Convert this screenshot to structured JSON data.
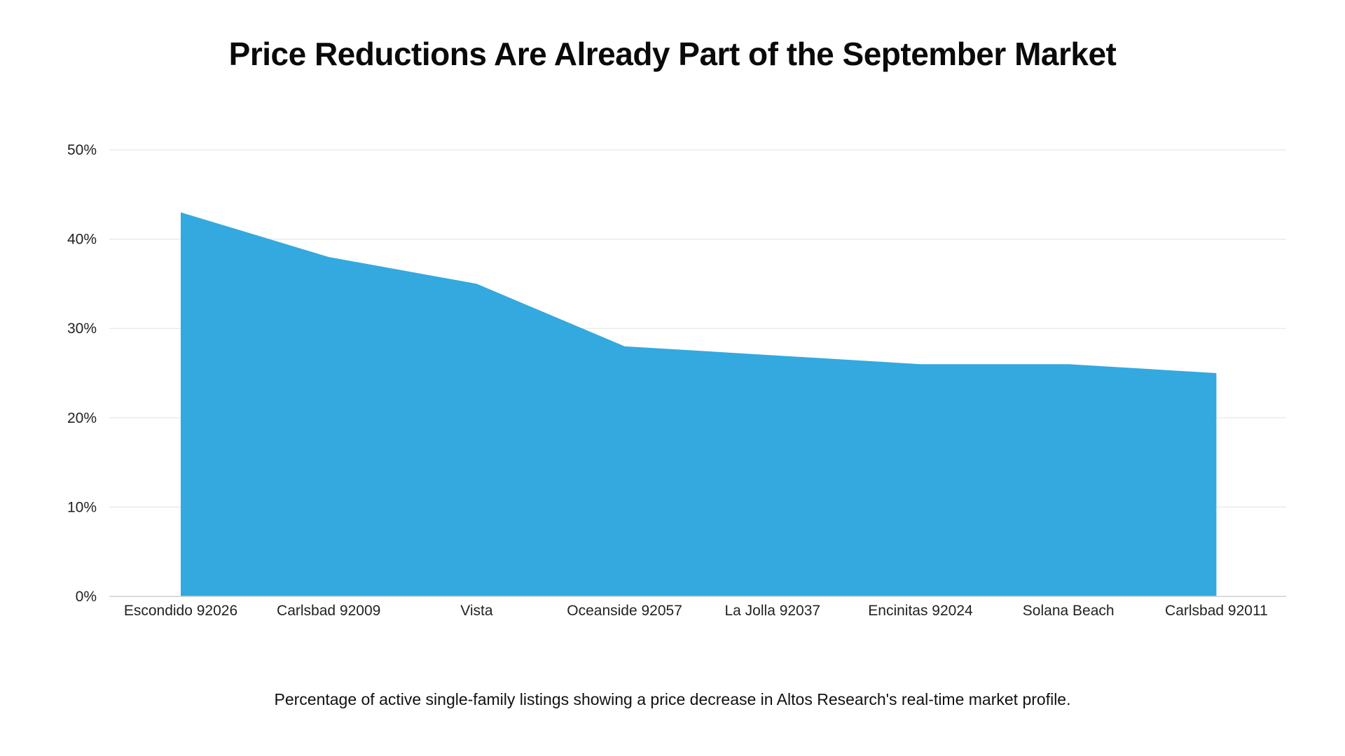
{
  "chart_data": {
    "type": "area",
    "title": "Price Reductions Are Already Part of the September Market",
    "caption": "Percentage of active single-family listings showing a price decrease in Altos Research's real-time market profile.",
    "categories": [
      "Escondido 92026",
      "Carlsbad 92009",
      "Vista",
      "Oceanside 92057",
      "La Jolla 92037",
      "Encinitas 92024",
      "Solana Beach",
      "Carlsbad 92011"
    ],
    "series": [
      {
        "values": [
          43,
          38,
          35,
          28,
          27,
          26,
          26,
          25
        ]
      }
    ],
    "ylim": [
      0,
      50
    ],
    "yticks": [
      0,
      10,
      20,
      30,
      40,
      50
    ],
    "ytick_labels": [
      "0%",
      "10%",
      "20%",
      "30%",
      "40%",
      "50%"
    ],
    "grid": true,
    "legend": "none",
    "fill_color": "#33a9e0",
    "grid_color": "#e6e6e6",
    "axis_color": "#cfcfcf"
  }
}
